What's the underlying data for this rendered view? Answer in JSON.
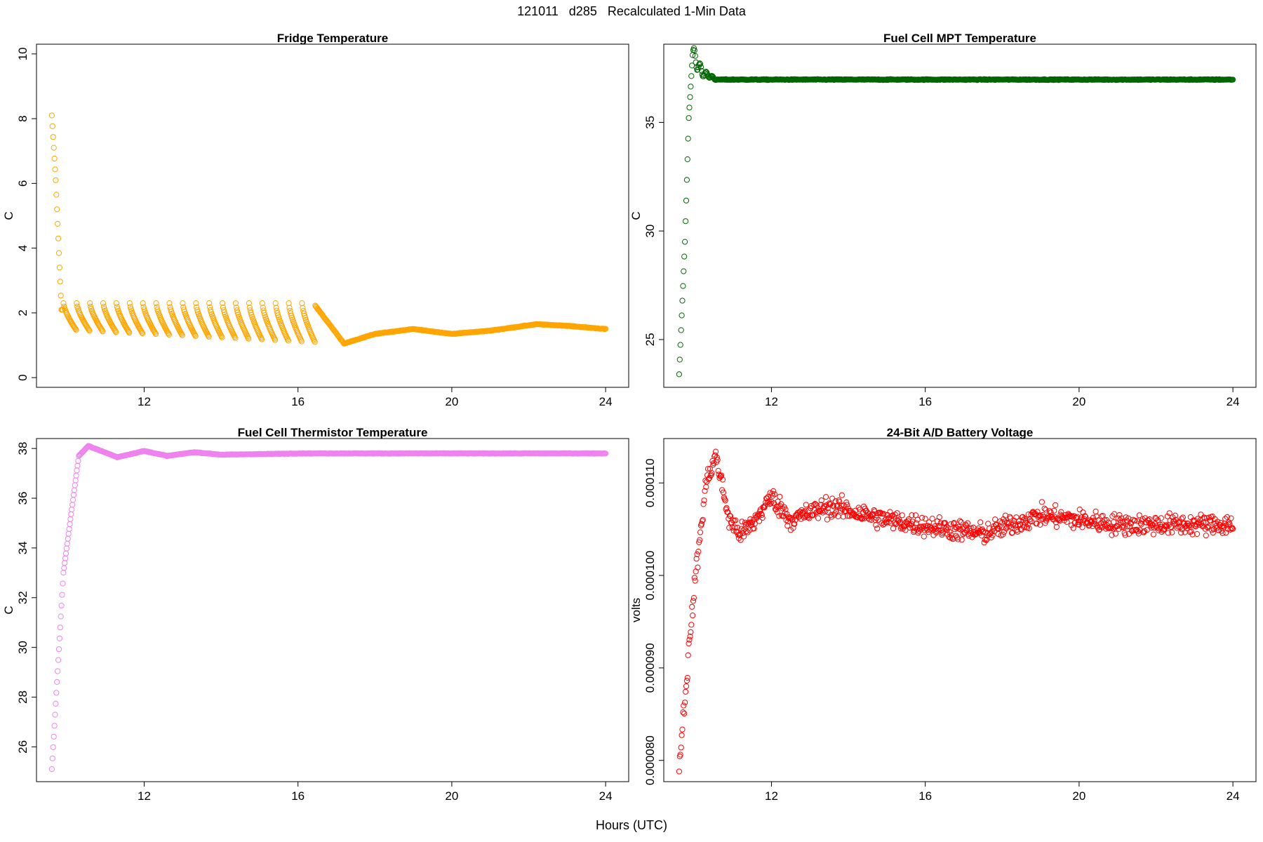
{
  "figure": {
    "title": "121011   d285   Recalculated 1-Min Data",
    "xlabel": "Hours (UTC)"
  },
  "colors": {
    "fridge": "#FFA500",
    "mpt": "#006400",
    "thermistor": "#EE82EE",
    "battery": "#FF0000"
  },
  "chart_data": [
    {
      "type": "scatter",
      "title": "Fridge Temperature",
      "xlabel": "",
      "ylabel": "C",
      "xlim": [
        9.2,
        24.6
      ],
      "ylim": [
        -0.3,
        10.3
      ],
      "xticks": [
        "12",
        "16",
        "20",
        "24"
      ],
      "yticks": [
        "0",
        "2",
        "4",
        "6",
        "8",
        "10"
      ],
      "grid": false,
      "marker": "open-circle",
      "x_start": 9.6,
      "x_end": 24.0,
      "description_points": [
        [
          9.6,
          8.1
        ],
        [
          9.7,
          6.1
        ],
        [
          9.8,
          3.4
        ],
        [
          9.85,
          2.1
        ],
        [
          10.0,
          2.3
        ],
        [
          16.4,
          2.3
        ],
        [
          17.2,
          1.05
        ],
        [
          18.0,
          1.35
        ],
        [
          19.0,
          1.5
        ],
        [
          20.0,
          1.35
        ],
        [
          21.0,
          1.45
        ],
        [
          22.2,
          1.65
        ],
        [
          23.0,
          1.6
        ],
        [
          24.0,
          1.5
        ]
      ],
      "series": [
        {
          "name": "",
          "color": "#FFA500"
        }
      ]
    },
    {
      "type": "scatter",
      "title": "Fuel Cell MPT Temperature",
      "xlabel": "",
      "ylabel": "C",
      "xlim": [
        9.2,
        24.6
      ],
      "ylim": [
        22.8,
        38.6
      ],
      "xticks": [
        "12",
        "16",
        "20",
        "24"
      ],
      "yticks": [
        "25",
        "30",
        "35"
      ],
      "grid": false,
      "marker": "open-circle",
      "description_points": [
        [
          9.6,
          23.4
        ],
        [
          9.75,
          29.5
        ],
        [
          9.85,
          35.2
        ],
        [
          9.95,
          38.1
        ],
        [
          10.2,
          37.3
        ],
        [
          10.6,
          36.95
        ],
        [
          24.0,
          37.0
        ]
      ],
      "series": [
        {
          "name": "",
          "color": "#006400"
        }
      ]
    },
    {
      "type": "scatter",
      "title": "Fuel Cell Thermistor Temperature",
      "xlabel": "",
      "ylabel": "C",
      "xlim": [
        9.2,
        24.6
      ],
      "ylim": [
        24.6,
        38.4
      ],
      "xticks": [
        "12",
        "16",
        "20",
        "24"
      ],
      "yticks": [
        "26",
        "28",
        "30",
        "32",
        "34",
        "36",
        "38"
      ],
      "grid": false,
      "marker": "open-circle",
      "description_points": [
        [
          9.6,
          25.1
        ],
        [
          9.9,
          33.0
        ],
        [
          10.3,
          37.7
        ],
        [
          10.55,
          38.1
        ],
        [
          11.3,
          37.65
        ],
        [
          12.0,
          37.9
        ],
        [
          12.6,
          37.7
        ],
        [
          13.3,
          37.85
        ],
        [
          14.0,
          37.75
        ],
        [
          16.0,
          37.8
        ],
        [
          24.0,
          37.8
        ]
      ],
      "series": [
        {
          "name": "",
          "color": "#EE82EE"
        }
      ]
    },
    {
      "type": "scatter",
      "title": "24-Bit A/D Battery Voltage",
      "xlabel": "",
      "ylabel": "volts",
      "xlim": [
        9.2,
        24.6
      ],
      "ylim": [
        7.77e-05,
        0.0001148
      ],
      "xticks": [
        "12",
        "16",
        "20",
        "24"
      ],
      "yticks": [
        "0.000080",
        "0.000090",
        "0.000100",
        "0.000110"
      ],
      "grid": false,
      "marker": "open-circle",
      "description_points": [
        [
          9.6,
          7.95e-05
        ],
        [
          10.0,
          9.9e-05
        ],
        [
          10.3,
          0.00011
        ],
        [
          10.55,
          0.000113
        ],
        [
          10.9,
          0.000106
        ],
        [
          11.2,
          0.0001045
        ],
        [
          11.5,
          0.0001055
        ],
        [
          12.0,
          0.0001085
        ],
        [
          12.5,
          0.000106
        ],
        [
          13.5,
          0.0001075
        ],
        [
          15.0,
          0.000106
        ],
        [
          17.5,
          0.0001045
        ],
        [
          19.0,
          0.0001065
        ],
        [
          21.0,
          0.0001055
        ],
        [
          24.0,
          0.0001055
        ]
      ],
      "series": [
        {
          "name": "",
          "color": "#FF0000"
        }
      ]
    }
  ]
}
